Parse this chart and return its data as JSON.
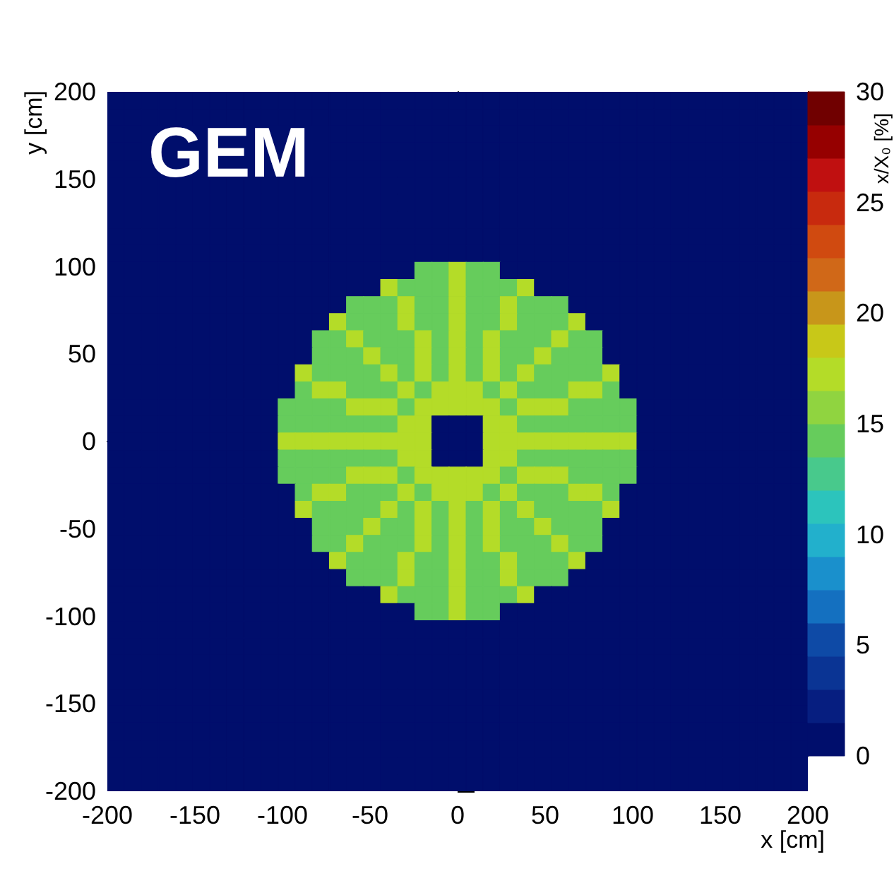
{
  "chart_data": {
    "type": "heatmap",
    "title": "GEM",
    "xlabel": "x [cm]",
    "ylabel": "y [cm]",
    "clabel": "x/X₀ [%]",
    "xlim": [
      -200,
      200
    ],
    "xticks": [
      -200,
      -150,
      -100,
      -50,
      0,
      50,
      100,
      150,
      200
    ],
    "ylim": [
      -200,
      200
    ],
    "yticks": [
      -200,
      -150,
      -100,
      -50,
      0,
      50,
      100,
      150,
      200
    ],
    "clim": [
      0,
      30
    ],
    "cticks": [
      0,
      5,
      10,
      15,
      20,
      25,
      30
    ],
    "colors": [
      "#000e6c",
      "#061e80",
      "#0a3494",
      "#0e4aa6",
      "#1470c0",
      "#1a90cc",
      "#22b0cc",
      "#2cc4bc",
      "#48c98c",
      "#66cc5c",
      "#90d440",
      "#b4dc28",
      "#c8c818",
      "#c8961a",
      "#d06818",
      "#d04a10",
      "#c82a0e",
      "#c01010",
      "#960000",
      "#700000"
    ],
    "cells": [
      [
        0,
        0,
        0,
        0,
        0,
        0,
        0,
        0,
        0,
        0,
        0,
        0,
        0,
        0,
        0,
        0,
        0,
        0,
        0,
        0,
        0,
        0,
        0,
        0,
        0,
        0,
        0,
        0,
        0,
        0,
        0,
        0,
        0,
        0,
        0,
        0,
        0,
        0,
        0,
        0,
        0
      ],
      [
        0,
        0,
        0,
        0,
        0,
        0,
        0,
        0,
        0,
        0,
        0,
        0,
        0,
        0,
        0,
        0,
        0,
        0,
        0,
        0,
        0,
        0,
        0,
        0,
        0,
        0,
        0,
        0,
        0,
        0,
        0,
        0,
        0,
        0,
        0,
        0,
        0,
        0,
        0,
        0,
        0
      ],
      [
        0,
        0,
        null,
        null,
        null,
        null,
        null,
        null,
        null,
        null,
        null,
        null,
        null,
        0,
        0,
        0,
        0,
        0,
        0,
        0,
        0,
        0,
        0,
        0,
        0,
        0,
        0,
        0,
        0,
        0,
        0,
        0,
        0,
        0,
        0,
        0,
        0,
        0,
        0,
        0,
        0
      ],
      [
        0,
        0,
        null,
        null,
        null,
        null,
        null,
        null,
        null,
        null,
        null,
        null,
        null,
        0,
        0,
        0,
        0,
        0,
        0,
        0,
        0,
        0,
        0,
        0,
        0,
        0,
        0,
        0,
        0,
        0,
        0,
        0,
        0,
        0,
        0,
        0,
        0,
        0,
        0,
        0,
        0
      ],
      [
        0,
        0,
        null,
        null,
        null,
        null,
        null,
        null,
        null,
        null,
        null,
        null,
        null,
        0,
        0,
        0,
        0,
        0,
        0,
        0,
        0,
        0,
        0,
        0,
        0,
        0,
        0,
        0,
        0,
        0,
        0,
        0,
        0,
        0,
        0,
        0,
        0,
        0,
        0,
        0,
        0
      ],
      [
        0,
        0,
        0,
        0,
        0,
        0,
        0,
        0,
        0,
        0,
        0,
        0,
        0,
        0,
        0,
        0,
        0,
        0,
        0,
        0,
        0,
        0,
        0,
        0,
        0,
        0,
        0,
        0,
        0,
        0,
        0,
        0,
        0,
        0,
        0,
        0,
        0,
        0,
        0,
        0,
        0
      ],
      [
        0,
        0,
        0,
        0,
        0,
        0,
        0,
        0,
        0,
        0,
        0,
        0,
        0,
        0,
        0,
        0,
        0,
        0,
        0,
        0,
        0,
        0,
        0,
        0,
        0,
        0,
        0,
        0,
        0,
        0,
        0,
        0,
        0,
        0,
        0,
        0,
        0,
        0,
        0,
        0,
        0
      ],
      [
        0,
        0,
        0,
        0,
        0,
        0,
        0,
        0,
        0,
        0,
        0,
        0,
        0,
        0,
        0,
        0,
        0,
        0,
        0,
        0,
        0,
        0,
        0,
        0,
        0,
        0,
        0,
        0,
        0,
        0,
        0,
        0,
        0,
        0,
        0,
        0,
        0,
        0,
        0,
        0,
        0
      ],
      [
        0,
        0,
        0,
        0,
        0,
        0,
        0,
        0,
        0,
        0,
        0,
        0,
        0,
        0,
        0,
        0,
        0,
        0,
        0,
        0,
        0,
        0,
        0,
        0,
        0,
        0,
        0,
        0,
        0,
        0,
        0,
        0,
        0,
        0,
        0,
        0,
        0,
        0,
        0,
        0,
        0
      ],
      [
        0,
        0,
        0,
        0,
        0,
        0,
        0,
        0,
        0,
        0,
        0,
        0,
        0,
        0,
        0,
        0,
        0,
        0,
        0,
        0,
        0,
        0,
        0,
        0,
        0,
        0,
        0,
        0,
        0,
        0,
        0,
        0,
        0,
        0,
        0,
        0,
        0,
        0,
        0,
        0,
        0
      ],
      [
        0,
        0,
        0,
        0,
        0,
        0,
        0,
        0,
        0,
        0,
        0,
        0,
        0,
        0,
        0,
        0,
        0,
        0,
        14,
        14,
        17,
        14,
        14,
        0,
        0,
        0,
        0,
        0,
        0,
        0,
        0,
        0,
        0,
        0,
        0,
        0,
        0,
        0,
        0,
        0,
        0
      ],
      [
        0,
        0,
        0,
        0,
        0,
        0,
        0,
        0,
        0,
        0,
        0,
        0,
        0,
        0,
        0,
        0,
        17,
        14,
        14,
        14,
        17,
        14,
        14,
        14,
        17,
        0,
        0,
        0,
        0,
        0,
        0,
        0,
        0,
        0,
        0,
        0,
        0,
        0,
        0,
        0,
        0
      ],
      [
        0,
        0,
        0,
        0,
        0,
        0,
        0,
        0,
        0,
        0,
        0,
        0,
        0,
        0,
        14,
        14,
        14,
        17,
        14,
        14,
        17,
        14,
        14,
        17,
        14,
        14,
        14,
        0,
        0,
        0,
        0,
        0,
        0,
        0,
        0,
        0,
        0,
        0,
        0,
        0,
        0
      ],
      [
        0,
        0,
        0,
        0,
        0,
        0,
        0,
        0,
        0,
        0,
        0,
        0,
        0,
        17,
        14,
        14,
        14,
        17,
        14,
        14,
        17,
        14,
        14,
        17,
        14,
        14,
        14,
        17,
        0,
        0,
        0,
        0,
        0,
        0,
        0,
        0,
        0,
        0,
        0,
        0,
        0
      ],
      [
        0,
        0,
        0,
        0,
        0,
        0,
        0,
        0,
        0,
        0,
        0,
        0,
        14,
        14,
        17,
        14,
        14,
        14,
        17,
        14,
        17,
        14,
        17,
        14,
        14,
        14,
        17,
        14,
        14,
        0,
        0,
        0,
        0,
        0,
        0,
        0,
        0,
        0,
        0,
        0,
        0
      ],
      [
        0,
        0,
        0,
        0,
        0,
        0,
        0,
        0,
        0,
        0,
        0,
        0,
        14,
        14,
        14,
        17,
        14,
        14,
        17,
        14,
        17,
        14,
        17,
        14,
        14,
        17,
        14,
        14,
        14,
        0,
        0,
        0,
        0,
        0,
        0,
        0,
        0,
        0,
        0,
        0,
        0
      ],
      [
        0,
        0,
        0,
        0,
        0,
        0,
        0,
        0,
        0,
        0,
        0,
        17,
        14,
        14,
        14,
        14,
        17,
        14,
        17,
        14,
        17,
        14,
        17,
        14,
        17,
        14,
        14,
        14,
        14,
        17,
        0,
        0,
        0,
        0,
        0,
        0,
        0,
        0,
        0,
        0,
        0
      ],
      [
        0,
        0,
        0,
        0,
        0,
        0,
        0,
        0,
        0,
        0,
        0,
        14,
        17,
        17,
        14,
        14,
        14,
        17,
        14,
        17,
        17,
        17,
        14,
        17,
        14,
        14,
        14,
        17,
        17,
        14,
        0,
        0,
        0,
        0,
        0,
        0,
        0,
        0,
        0,
        0,
        0
      ],
      [
        0,
        0,
        0,
        0,
        0,
        0,
        0,
        0,
        0,
        0,
        14,
        14,
        14,
        14,
        17,
        17,
        17,
        14,
        17,
        17,
        17,
        17,
        17,
        14,
        17,
        17,
        17,
        14,
        14,
        14,
        14,
        0,
        0,
        0,
        0,
        0,
        0,
        0,
        0,
        0,
        0
      ],
      [
        0,
        0,
        0,
        0,
        0,
        0,
        0,
        0,
        0,
        0,
        14,
        14,
        14,
        14,
        14,
        14,
        14,
        17,
        17,
        0,
        0,
        0,
        17,
        17,
        14,
        14,
        14,
        14,
        14,
        14,
        14,
        0,
        0,
        0,
        0,
        0,
        0,
        0,
        0,
        0,
        0
      ],
      [
        0,
        0,
        0,
        0,
        0,
        0,
        0,
        0,
        0,
        0,
        17,
        17,
        17,
        17,
        17,
        17,
        17,
        17,
        17,
        0,
        0,
        0,
        17,
        17,
        17,
        17,
        17,
        17,
        17,
        17,
        17,
        0,
        0,
        0,
        0,
        0,
        0,
        0,
        0,
        0,
        0
      ],
      [
        0,
        0,
        0,
        0,
        0,
        0,
        0,
        0,
        0,
        0,
        14,
        14,
        14,
        14,
        14,
        14,
        14,
        17,
        17,
        0,
        0,
        0,
        17,
        17,
        14,
        14,
        14,
        14,
        14,
        14,
        14,
        0,
        0,
        0,
        0,
        0,
        0,
        0,
        0,
        0,
        0
      ],
      [
        0,
        0,
        0,
        0,
        0,
        0,
        0,
        0,
        0,
        0,
        14,
        14,
        14,
        14,
        17,
        17,
        17,
        14,
        17,
        17,
        17,
        17,
        17,
        14,
        17,
        17,
        17,
        14,
        14,
        14,
        14,
        0,
        0,
        0,
        0,
        0,
        0,
        0,
        0,
        0,
        0
      ],
      [
        0,
        0,
        0,
        0,
        0,
        0,
        0,
        0,
        0,
        0,
        0,
        14,
        17,
        17,
        14,
        14,
        14,
        17,
        14,
        17,
        17,
        17,
        14,
        17,
        14,
        14,
        14,
        17,
        17,
        14,
        0,
        0,
        0,
        0,
        0,
        0,
        0,
        0,
        0,
        0,
        0
      ],
      [
        0,
        0,
        0,
        0,
        0,
        0,
        0,
        0,
        0,
        0,
        0,
        17,
        14,
        14,
        14,
        14,
        17,
        14,
        17,
        14,
        17,
        14,
        17,
        14,
        17,
        14,
        14,
        14,
        14,
        17,
        0,
        0,
        0,
        0,
        0,
        0,
        0,
        0,
        0,
        0,
        0
      ],
      [
        0,
        0,
        0,
        0,
        0,
        0,
        0,
        0,
        0,
        0,
        0,
        0,
        14,
        14,
        14,
        17,
        14,
        14,
        17,
        14,
        17,
        14,
        17,
        14,
        14,
        17,
        14,
        14,
        14,
        0,
        0,
        0,
        0,
        0,
        0,
        0,
        0,
        0,
        0,
        0,
        0
      ],
      [
        0,
        0,
        0,
        0,
        0,
        0,
        0,
        0,
        0,
        0,
        0,
        0,
        14,
        14,
        17,
        14,
        14,
        14,
        17,
        14,
        17,
        14,
        17,
        14,
        14,
        14,
        17,
        14,
        14,
        0,
        0,
        0,
        0,
        0,
        0,
        0,
        0,
        0,
        0,
        0,
        0
      ],
      [
        0,
        0,
        0,
        0,
        0,
        0,
        0,
        0,
        0,
        0,
        0,
        0,
        0,
        17,
        14,
        14,
        14,
        17,
        14,
        14,
        17,
        14,
        14,
        17,
        14,
        14,
        14,
        17,
        0,
        0,
        0,
        0,
        0,
        0,
        0,
        0,
        0,
        0,
        0,
        0,
        0
      ],
      [
        0,
        0,
        0,
        0,
        0,
        0,
        0,
        0,
        0,
        0,
        0,
        0,
        0,
        0,
        14,
        14,
        14,
        17,
        14,
        14,
        17,
        14,
        14,
        17,
        14,
        14,
        14,
        0,
        0,
        0,
        0,
        0,
        0,
        0,
        0,
        0,
        0,
        0,
        0,
        0,
        0
      ],
      [
        0,
        0,
        0,
        0,
        0,
        0,
        0,
        0,
        0,
        0,
        0,
        0,
        0,
        0,
        0,
        0,
        17,
        14,
        14,
        14,
        17,
        14,
        14,
        14,
        17,
        0,
        0,
        0,
        0,
        0,
        0,
        0,
        0,
        0,
        0,
        0,
        0,
        0,
        0,
        0,
        0
      ],
      [
        0,
        0,
        0,
        0,
        0,
        0,
        0,
        0,
        0,
        0,
        0,
        0,
        0,
        0,
        0,
        0,
        0,
        0,
        14,
        14,
        17,
        14,
        14,
        0,
        0,
        0,
        0,
        0,
        0,
        0,
        0,
        0,
        0,
        0,
        0,
        0,
        0,
        0,
        0,
        0,
        0
      ],
      [
        0,
        0,
        0,
        0,
        0,
        0,
        0,
        0,
        0,
        0,
        0,
        0,
        0,
        0,
        0,
        0,
        0,
        0,
        0,
        0,
        0,
        0,
        0,
        0,
        0,
        0,
        0,
        0,
        0,
        0,
        0,
        0,
        0,
        0,
        0,
        0,
        0,
        0,
        0,
        0,
        0
      ],
      [
        0,
        0,
        0,
        0,
        0,
        0,
        0,
        0,
        0,
        0,
        0,
        0,
        0,
        0,
        0,
        0,
        0,
        0,
        0,
        0,
        0,
        0,
        0,
        0,
        0,
        0,
        0,
        0,
        0,
        0,
        0,
        0,
        0,
        0,
        0,
        0,
        0,
        0,
        0,
        0,
        0
      ],
      [
        0,
        0,
        0,
        0,
        0,
        0,
        0,
        0,
        0,
        0,
        0,
        0,
        0,
        0,
        0,
        0,
        0,
        0,
        0,
        0,
        0,
        0,
        0,
        0,
        0,
        0,
        0,
        0,
        0,
        0,
        0,
        0,
        0,
        0,
        0,
        0,
        0,
        0,
        0,
        0,
        0
      ],
      [
        0,
        0,
        0,
        0,
        0,
        0,
        0,
        0,
        0,
        0,
        0,
        0,
        0,
        0,
        0,
        0,
        0,
        0,
        0,
        0,
        0,
        0,
        0,
        0,
        0,
        0,
        0,
        0,
        0,
        0,
        0,
        0,
        0,
        0,
        0,
        0,
        0,
        0,
        0,
        0,
        0
      ],
      [
        0,
        0,
        0,
        0,
        0,
        0,
        0,
        0,
        0,
        0,
        0,
        0,
        0,
        0,
        0,
        0,
        0,
        0,
        0,
        0,
        0,
        0,
        0,
        0,
        0,
        0,
        0,
        0,
        0,
        0,
        0,
        0,
        0,
        0,
        0,
        0,
        0,
        0,
        0,
        0,
        0
      ],
      [
        0,
        0,
        0,
        0,
        0,
        0,
        0,
        0,
        0,
        0,
        0,
        0,
        0,
        0,
        0,
        0,
        0,
        0,
        0,
        0,
        0,
        0,
        0,
        0,
        0,
        0,
        0,
        0,
        0,
        0,
        0,
        0,
        0,
        0,
        0,
        0,
        0,
        0,
        0,
        0,
        0
      ],
      [
        0,
        0,
        0,
        0,
        0,
        0,
        0,
        0,
        0,
        0,
        0,
        0,
        0,
        0,
        0,
        0,
        0,
        0,
        0,
        0,
        0,
        0,
        0,
        0,
        0,
        0,
        0,
        0,
        0,
        0,
        0,
        0,
        0,
        0,
        0,
        0,
        0,
        0,
        0,
        0,
        0
      ],
      [
        0,
        0,
        0,
        0,
        0,
        0,
        0,
        0,
        0,
        0,
        0,
        0,
        0,
        0,
        0,
        0,
        0,
        0,
        0,
        0,
        0,
        0,
        0,
        0,
        0,
        0,
        0,
        0,
        0,
        0,
        0,
        0,
        0,
        0,
        0,
        0,
        0,
        0,
        0,
        0,
        0
      ],
      [
        0,
        0,
        0,
        0,
        0,
        0,
        0,
        0,
        0,
        0,
        0,
        0,
        0,
        0,
        0,
        0,
        0,
        0,
        0,
        0,
        0,
        0,
        0,
        0,
        0,
        0,
        0,
        0,
        0,
        0,
        0,
        0,
        0,
        0,
        0,
        0,
        0,
        0,
        0,
        0,
        0
      ],
      [
        0,
        0,
        0,
        0,
        0,
        0,
        0,
        0,
        0,
        0,
        0,
        0,
        0,
        0,
        0,
        0,
        0,
        0,
        0,
        0,
        0,
        0,
        0,
        0,
        0,
        0,
        0,
        0,
        0,
        0,
        0,
        0,
        0,
        0,
        0,
        0,
        0,
        0,
        0,
        0,
        0
      ]
    ]
  }
}
